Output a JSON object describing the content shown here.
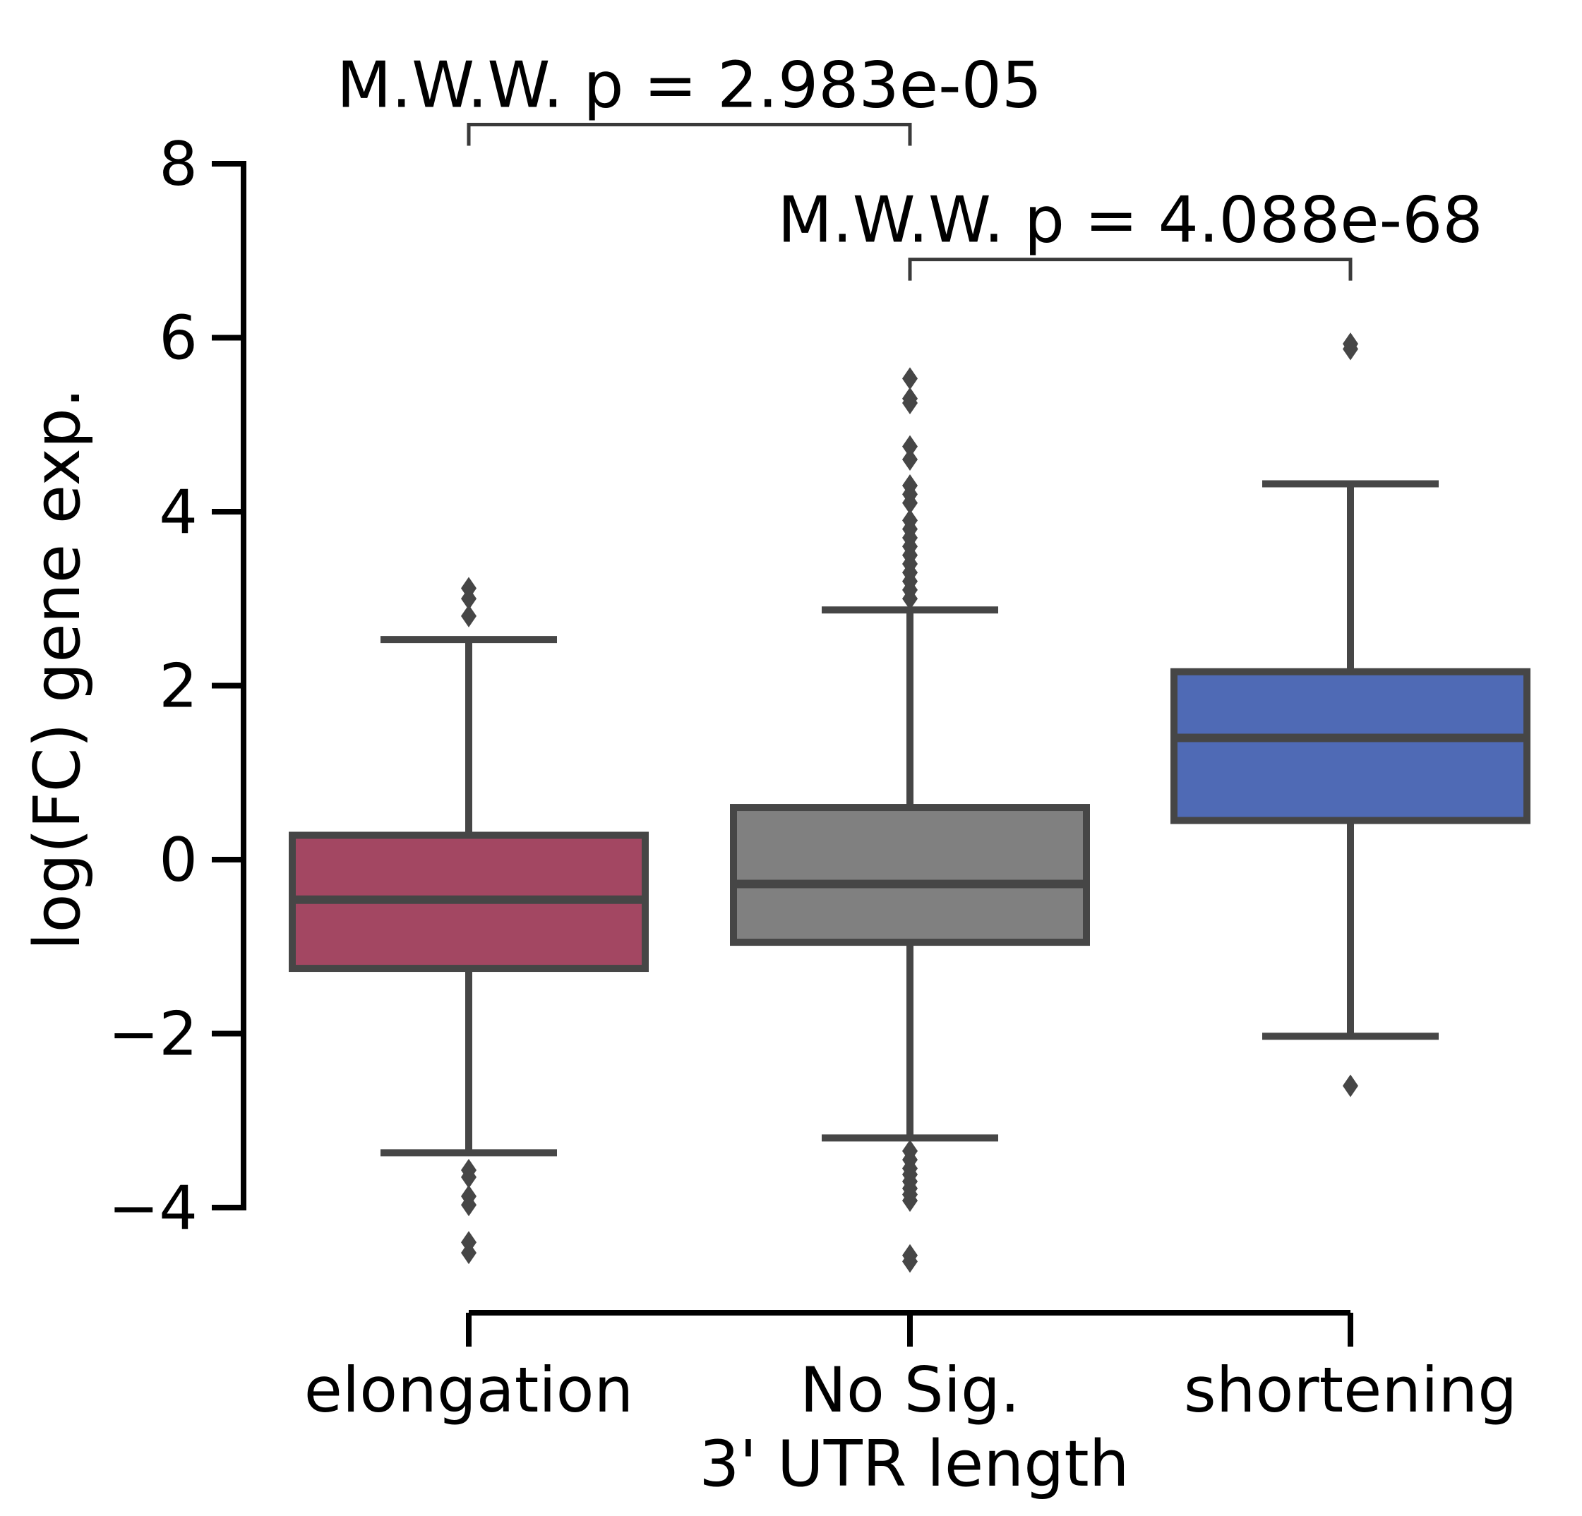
{
  "chart_data": {
    "type": "box",
    "title": "",
    "xlabel": "3' UTR length",
    "ylabel": "log(FC) gene exp.",
    "ylim": [
      -5.2,
      8.6
    ],
    "yticks": [
      -4,
      -2,
      0,
      2,
      4,
      6,
      8
    ],
    "ytick_labels": [
      "−4",
      "−2",
      "0",
      "2",
      "4",
      "6",
      "8"
    ],
    "grid": false,
    "legend": "none",
    "categories": [
      "elongation",
      "No Sig.",
      "shortening"
    ],
    "boxes": [
      {
        "category": "elongation",
        "color": "#a34762",
        "q1": -1.25,
        "median": -0.46,
        "q3": 0.28,
        "whisker_low": -3.37,
        "whisker_high": 2.53,
        "outliers": [
          3.12,
          3.0,
          2.8,
          -3.57,
          -3.65,
          -3.87,
          -3.97,
          -4.4,
          -4.52
        ]
      },
      {
        "category": "No Sig.",
        "color": "#808080",
        "q1": -0.95,
        "median": -0.28,
        "q3": 0.6,
        "whisker_low": -3.2,
        "whisker_high": 2.87,
        "outliers": [
          5.53,
          5.3,
          5.25,
          4.75,
          4.6,
          4.3,
          4.2,
          4.1,
          3.9,
          3.8,
          3.7,
          3.6,
          3.5,
          3.4,
          3.3,
          3.2,
          3.1,
          3.0,
          -3.35,
          -3.45,
          -3.55,
          -3.62,
          -3.7,
          -3.78,
          -3.85,
          -3.92,
          -4.55,
          -4.62
        ]
      },
      {
        "category": "shortening",
        "color": "#4f6ab5",
        "q1": 0.45,
        "median": 1.4,
        "q3": 2.16,
        "whisker_low": -2.03,
        "whisker_high": 4.32,
        "outliers": [
          5.93,
          5.87,
          -2.6
        ]
      }
    ],
    "annotations": [
      {
        "text": "M.W.W. p = 2.983e-05",
        "from": "elongation",
        "to": "No Sig."
      },
      {
        "text": "M.W.W. p = 4.088e-68",
        "from": "No Sig.",
        "to": "shortening"
      }
    ]
  },
  "colors": {
    "axis": "#000000",
    "box_edge": "#464646",
    "bracket": "#3a3a3a"
  }
}
